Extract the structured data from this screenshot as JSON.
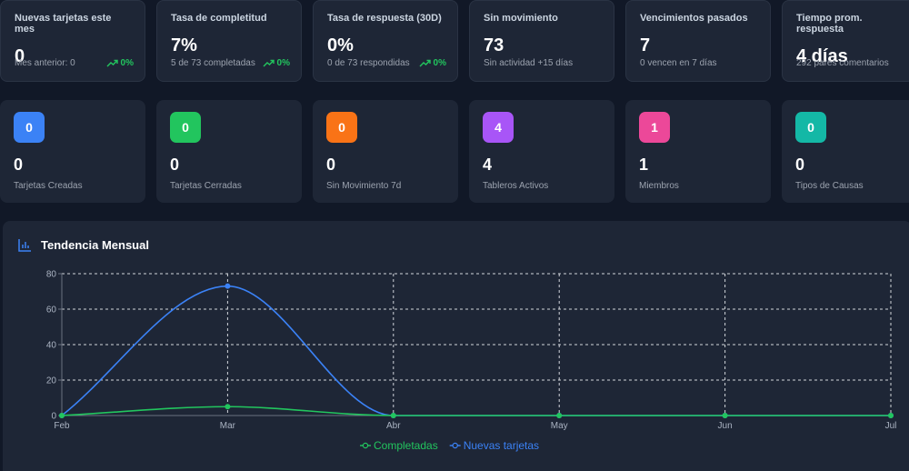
{
  "kpis": [
    {
      "title": "Nuevas tarjetas este mes",
      "value": "0",
      "sub": "Mes anterior: 0",
      "trend": "0%"
    },
    {
      "title": "Tasa de completitud",
      "value": "7%",
      "sub": "5 de 73 completadas",
      "trend": "0%"
    },
    {
      "title": "Tasa de respuesta (30D)",
      "value": "0%",
      "sub": "0 de 73 respondidas",
      "trend": "0%"
    },
    {
      "title": "Sin movimiento",
      "value": "73",
      "sub": "Sin actividad +15 días",
      "trend": ""
    },
    {
      "title": "Vencimientos pasados",
      "value": "7",
      "sub": "0 vencen en 7 días",
      "trend": ""
    },
    {
      "title": "Tiempo prom. respuesta",
      "value": "4 días",
      "sub": "292 pares comentarios",
      "trend": ""
    }
  ],
  "stats": [
    {
      "badge": "0",
      "value": "0",
      "label": "Tarjetas Creadas",
      "color": "#3b82f6"
    },
    {
      "badge": "0",
      "value": "0",
      "label": "Tarjetas Cerradas",
      "color": "#22c55e"
    },
    {
      "badge": "0",
      "value": "0",
      "label": "Sin Movimiento 7d",
      "color": "#f97316"
    },
    {
      "badge": "4",
      "value": "4",
      "label": "Tableros Activos",
      "color": "#a855f7"
    },
    {
      "badge": "1",
      "value": "1",
      "label": "Miembros",
      "color": "#ec4899"
    },
    {
      "badge": "0",
      "value": "0",
      "label": "Tipos de Causas",
      "color": "#14b8a6"
    }
  ],
  "panel": {
    "title": "Tendencia Mensual",
    "icon": "bar-chart-icon"
  },
  "chart_data": {
    "type": "line",
    "categories": [
      "Feb",
      "Mar",
      "Abr",
      "May",
      "Jun",
      "Jul"
    ],
    "series": [
      {
        "name": "Completadas",
        "values": [
          0,
          5,
          0,
          0,
          0,
          0
        ],
        "color": "#22c55e"
      },
      {
        "name": "Nuevas tarjetas",
        "values": [
          0,
          73,
          0,
          0,
          0,
          0
        ],
        "color": "#3b82f6"
      }
    ],
    "yticks": [
      0,
      20,
      40,
      60,
      80
    ],
    "ylim": [
      0,
      80
    ],
    "grid": true,
    "legend": "bottom-center"
  }
}
